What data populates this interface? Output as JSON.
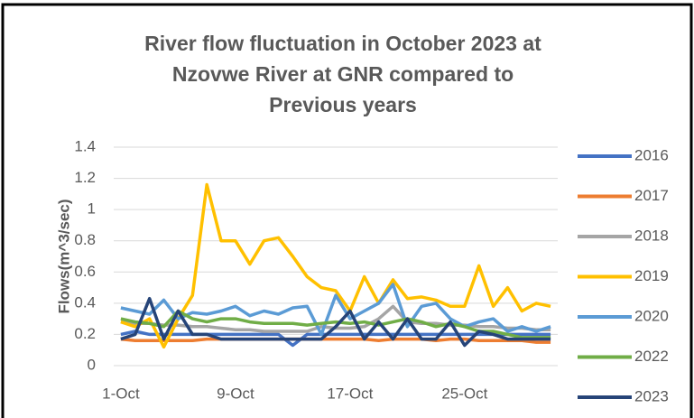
{
  "chart_data": {
    "type": "line",
    "title": [
      "River flow fluctuation in October 2023 at",
      "Nzovwe River at GNR compared to",
      "Previous years"
    ],
    "y_label": "Flows(m^3/sec)",
    "categories": [
      "1-Oct",
      null,
      null,
      null,
      null,
      null,
      null,
      null,
      "9-Oct",
      null,
      null,
      null,
      null,
      null,
      null,
      null,
      "17-Oct",
      null,
      null,
      null,
      null,
      null,
      null,
      null,
      "25-Oct",
      null,
      null,
      null,
      null,
      null,
      null
    ],
    "ylim": [
      0,
      1.4
    ],
    "yticks": [
      0,
      0.2,
      0.4,
      0.6,
      0.8,
      1,
      1.2,
      1.4
    ],
    "grid": true,
    "legend": "right",
    "series": [
      {
        "name": "2016",
        "color": "#4472c4",
        "values": [
          0.2,
          0.22,
          0.2,
          0.2,
          0.2,
          0.2,
          0.2,
          0.2,
          0.2,
          0.2,
          0.2,
          0.2,
          0.13,
          0.2,
          0.2,
          0.2,
          0.2,
          0.2,
          0.2,
          0.2,
          0.2,
          0.2,
          0.2,
          0.2,
          0.2,
          0.2,
          0.2,
          0.2,
          0.2,
          0.2,
          0.2
        ]
      },
      {
        "name": "2017",
        "color": "#ed7d31",
        "values": [
          0.17,
          0.16,
          0.16,
          0.16,
          0.16,
          0.16,
          0.17,
          0.17,
          0.17,
          0.17,
          0.17,
          0.17,
          0.17,
          0.17,
          0.17,
          0.17,
          0.17,
          0.17,
          0.16,
          0.17,
          0.17,
          0.17,
          0.16,
          0.17,
          0.17,
          0.16,
          0.16,
          0.16,
          0.16,
          0.15,
          0.15
        ]
      },
      {
        "name": "2018",
        "color": "#a5a5a5",
        "values": [
          0.28,
          0.27,
          0.27,
          0.26,
          0.26,
          0.25,
          0.25,
          0.24,
          0.23,
          0.23,
          0.22,
          0.22,
          0.22,
          0.22,
          0.25,
          0.24,
          0.24,
          0.25,
          0.3,
          0.38,
          0.28,
          0.27,
          0.27,
          0.26,
          0.26,
          0.25,
          0.25,
          0.24,
          0.24,
          0.23,
          0.23
        ]
      },
      {
        "name": "2019",
        "color": "#ffc000",
        "values": [
          0.28,
          0.25,
          0.3,
          0.12,
          0.3,
          0.45,
          1.16,
          0.8,
          0.8,
          0.65,
          0.8,
          0.82,
          0.7,
          0.57,
          0.5,
          0.48,
          0.35,
          0.57,
          0.4,
          0.55,
          0.43,
          0.44,
          0.42,
          0.38,
          0.38,
          0.64,
          0.38,
          0.5,
          0.35,
          0.4,
          0.38
        ]
      },
      {
        "name": "2020",
        "color": "#5b9bd5",
        "values": [
          0.37,
          0.35,
          0.33,
          0.42,
          0.3,
          0.34,
          0.33,
          0.35,
          0.38,
          0.32,
          0.35,
          0.33,
          0.37,
          0.38,
          0.2,
          0.45,
          0.3,
          0.35,
          0.4,
          0.52,
          0.25,
          0.38,
          0.4,
          0.3,
          0.25,
          0.28,
          0.3,
          0.22,
          0.25,
          0.22,
          0.25
        ]
      },
      {
        "name": "2022",
        "color": "#70ad47",
        "values": [
          0.3,
          0.28,
          0.27,
          0.25,
          0.35,
          0.3,
          0.28,
          0.3,
          0.3,
          0.28,
          0.27,
          0.27,
          0.27,
          0.26,
          0.27,
          0.28,
          0.27,
          0.28,
          0.26,
          0.28,
          0.3,
          0.28,
          0.25,
          0.27,
          0.25,
          0.22,
          0.22,
          0.2,
          0.18,
          0.18,
          0.18
        ]
      },
      {
        "name": "2023",
        "color": "#264478",
        "values": [
          0.17,
          0.2,
          0.43,
          0.17,
          0.35,
          0.2,
          0.2,
          0.17,
          0.17,
          0.17,
          0.17,
          0.17,
          0.17,
          0.17,
          0.17,
          0.25,
          0.35,
          0.17,
          0.28,
          0.17,
          0.3,
          0.17,
          0.17,
          0.28,
          0.13,
          0.22,
          0.2,
          0.17,
          0.17,
          0.17,
          0.17
        ]
      }
    ]
  }
}
